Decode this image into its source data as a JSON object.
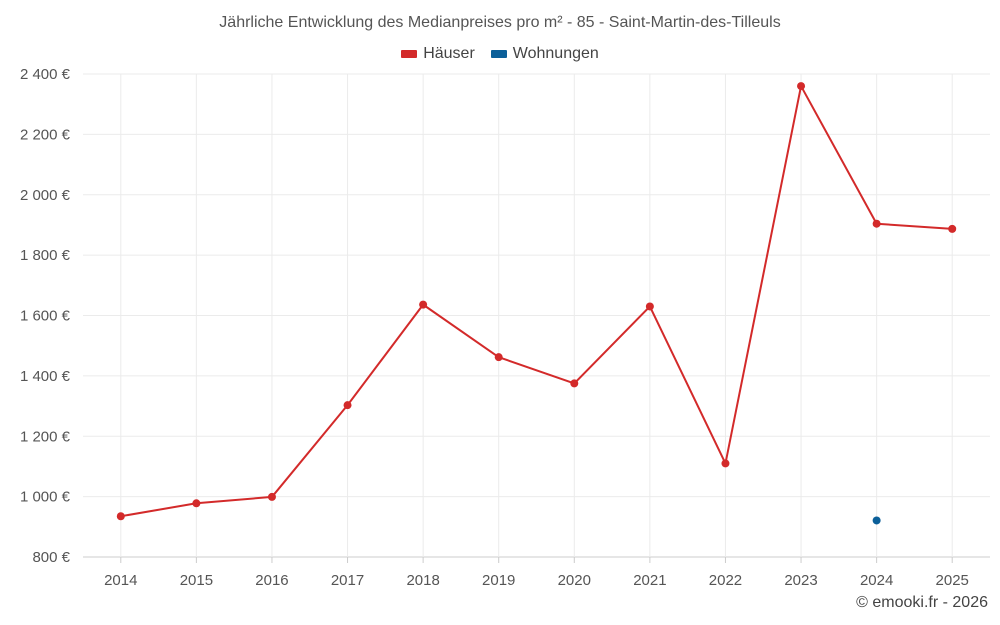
{
  "chart_data": {
    "type": "line",
    "title": "Jährliche Entwicklung des Medianpreises pro m² - 85 - Saint-Martin-des-Tilleuls",
    "categories": [
      "2014",
      "2015",
      "2016",
      "2017",
      "2018",
      "2019",
      "2020",
      "2021",
      "2022",
      "2023",
      "2024",
      "2025"
    ],
    "series": [
      {
        "name": "Häuser",
        "color": "#d32a2a",
        "values": [
          935,
          978,
          999,
          1303,
          1636,
          1462,
          1375,
          1630,
          1110,
          2360,
          1904,
          1887
        ]
      },
      {
        "name": "Wohnungen",
        "color": "#0b5f99",
        "values": [
          null,
          null,
          null,
          null,
          null,
          null,
          null,
          null,
          null,
          null,
          921,
          null
        ]
      }
    ],
    "ylim": [
      800,
      2400
    ],
    "yticks": [
      800,
      1000,
      1200,
      1400,
      1600,
      1800,
      2000,
      2200,
      2400
    ],
    "ytick_labels": [
      "800 €",
      "1 000 €",
      "1 200 €",
      "1 400 €",
      "1 600 €",
      "1 800 €",
      "2 000 €",
      "2 200 €",
      "2 400 €"
    ],
    "xlabel": "",
    "ylabel": "",
    "grid": true,
    "legend_position": "top-center"
  },
  "credit": "© emooki.fr - 2026"
}
